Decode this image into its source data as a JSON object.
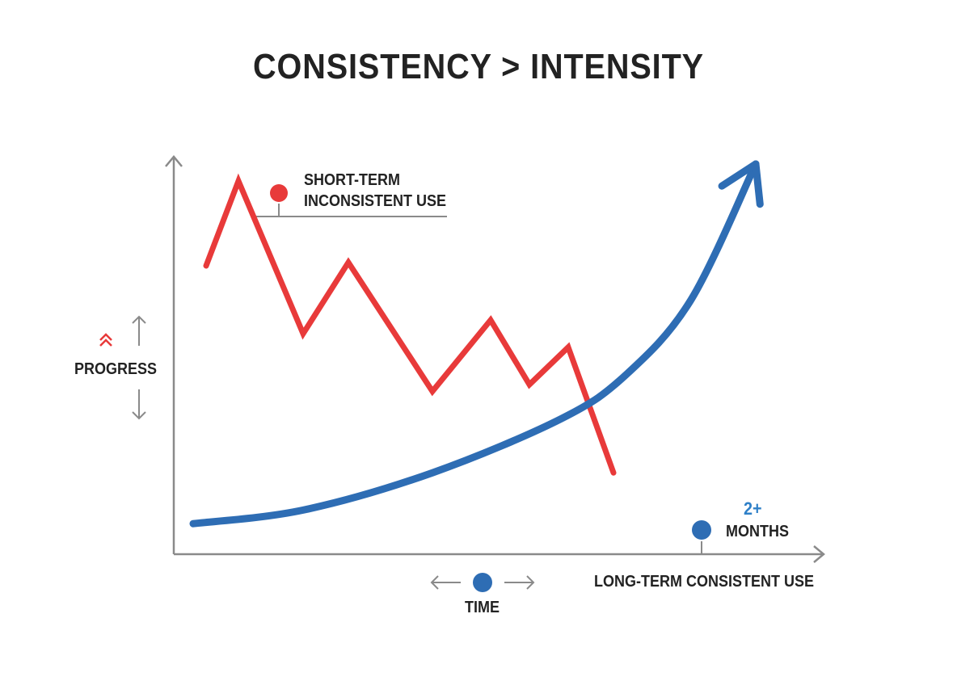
{
  "title": "CONSISTENCY > INTENSITY",
  "colors": {
    "red": "#e83a3a",
    "blue": "#2e6db4",
    "accent_blue": "#2f80c8",
    "axis": "#8a8a8a",
    "text": "#222222"
  },
  "labels": {
    "short_term_line1": "SHORT-TERM",
    "short_term_line2": "INCONSISTENT USE",
    "progress": "PROGRESS",
    "time": "TIME",
    "long_term": "LONG-TERM CONSISTENT USE",
    "months_value": "2+",
    "months_unit": "MONTHS"
  },
  "icons": {
    "progress_up": "double-chevron-up-icon",
    "progress_arrows": "up-down-arrow-icon",
    "time_arrows": "left-right-arrow-icon"
  },
  "chart_data": {
    "type": "line",
    "title": "CONSISTENCY > INTENSITY",
    "xlabel": "TIME",
    "ylabel": "PROGRESS",
    "grid": false,
    "series": [
      {
        "name": "SHORT-TERM INCONSISTENT USE",
        "color": "#e83a3a",
        "points": [
          [
            0.5,
            8.5
          ],
          [
            1.0,
            11.0
          ],
          [
            2.0,
            6.5
          ],
          [
            2.7,
            8.6
          ],
          [
            4.0,
            4.8
          ],
          [
            4.9,
            6.9
          ],
          [
            5.5,
            5.0
          ],
          [
            6.1,
            6.1
          ],
          [
            6.8,
            2.4
          ]
        ]
      },
      {
        "name": "LONG-TERM CONSISTENT USE",
        "color": "#2e6db4",
        "points": [
          [
            0.3,
            0.9
          ],
          [
            2.0,
            1.3
          ],
          [
            4.0,
            2.4
          ],
          [
            6.0,
            4.0
          ],
          [
            7.0,
            5.3
          ],
          [
            8.0,
            7.5
          ],
          [
            9.0,
            11.5
          ]
        ]
      }
    ],
    "annotations": [
      "2+",
      "MONTHS"
    ]
  }
}
